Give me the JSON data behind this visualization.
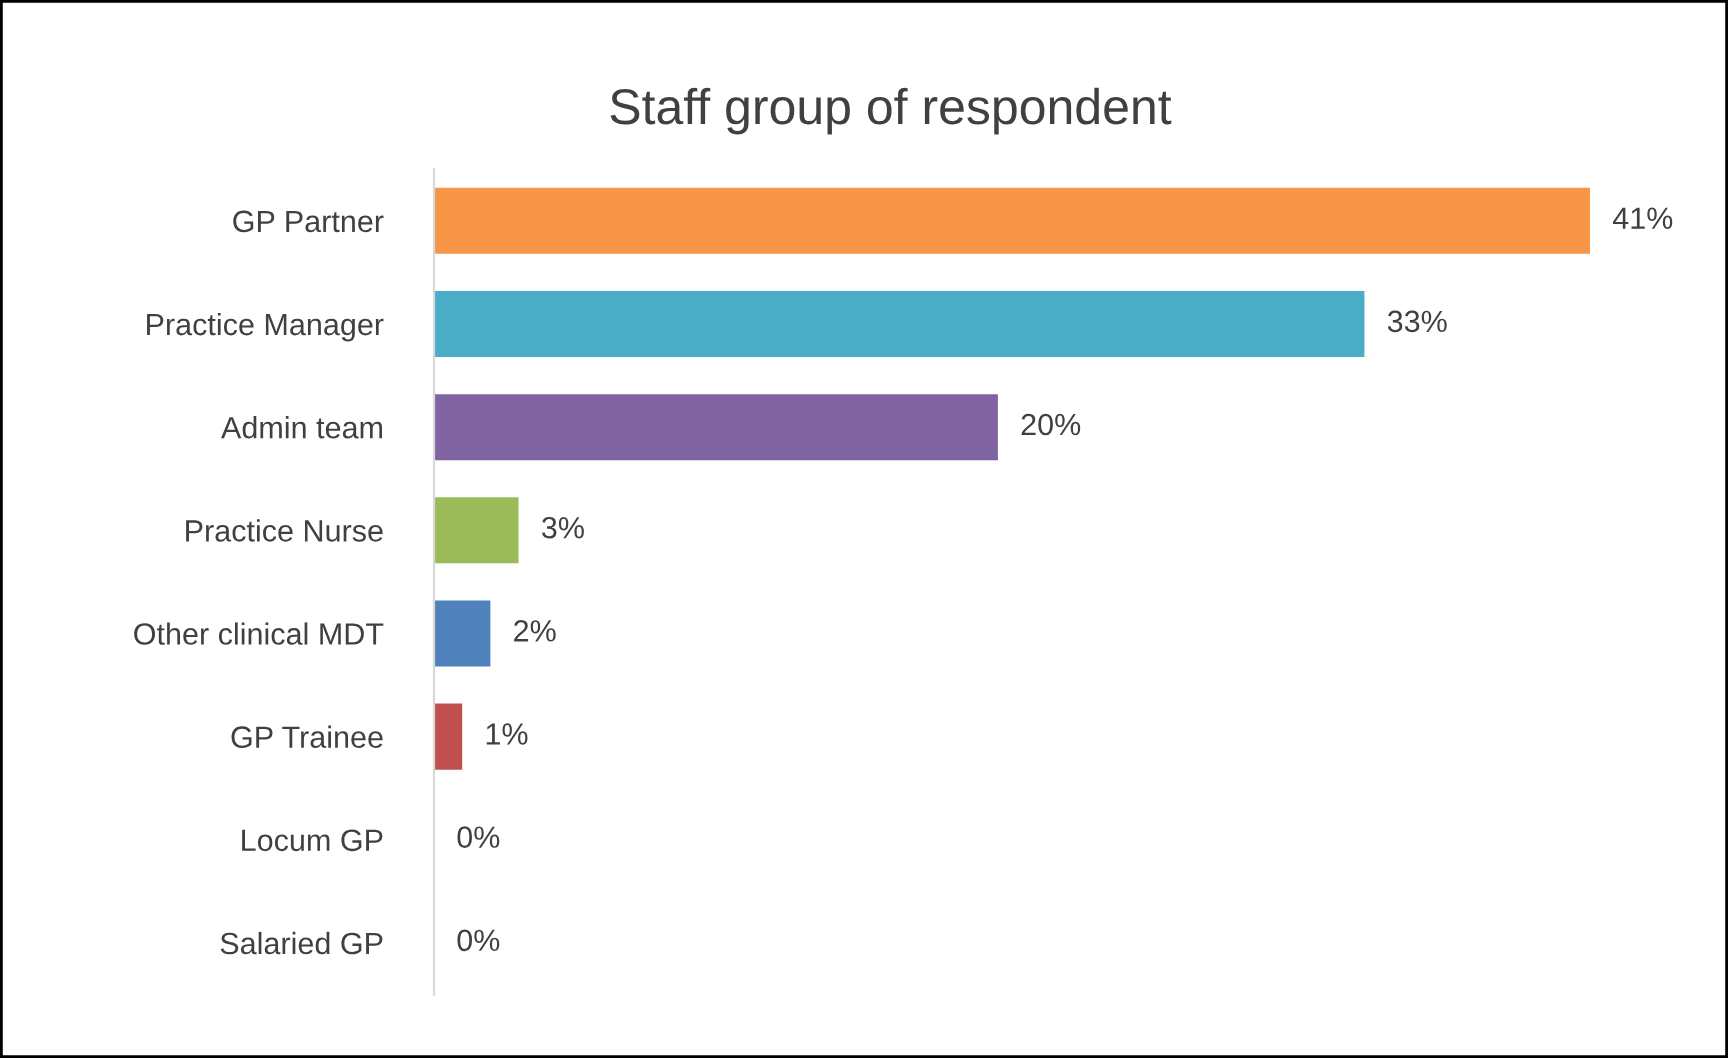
{
  "chart_data": {
    "type": "bar",
    "orientation": "horizontal",
    "title": "Staff group of respondent",
    "categories": [
      "GP Partner",
      "Practice Manager",
      "Admin team",
      "Practice Nurse",
      "Other clinical MDT",
      "GP Trainee",
      "Locum GP",
      "Salaried GP"
    ],
    "values": [
      41,
      33,
      20,
      3,
      2,
      1,
      0,
      0
    ],
    "colors": [
      "#f79646",
      "#4bacc6",
      "#8064a2",
      "#9bbb59",
      "#4f81bd",
      "#c0504d",
      "#4f81bd",
      "#4f81bd"
    ],
    "value_labels": [
      "41%",
      "33%",
      "20%",
      "3%",
      "2%",
      "1%",
      "0%",
      "0%"
    ],
    "grid": false,
    "legend": false
  }
}
